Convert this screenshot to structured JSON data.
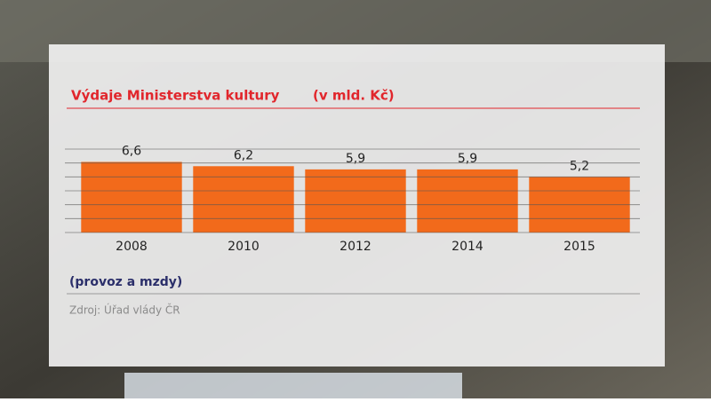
{
  "chart_data": {
    "type": "bar",
    "title": "Výdaje Ministerstva kultury",
    "subtitle": "(v mld. Kč)",
    "categories": [
      "2008",
      "2010",
      "2012",
      "2014",
      "2015"
    ],
    "values": [
      6.6,
      6.2,
      5.9,
      5.9,
      5.2
    ],
    "value_labels": [
      "6,6",
      "6,2",
      "5,9",
      "5,9",
      "5,2"
    ],
    "color": "#f26a1b",
    "ylim": [
      0,
      7.8
    ],
    "annotation": "(provoz a mzdy)",
    "source": "Zdroj: Úřad vlády ČR"
  }
}
